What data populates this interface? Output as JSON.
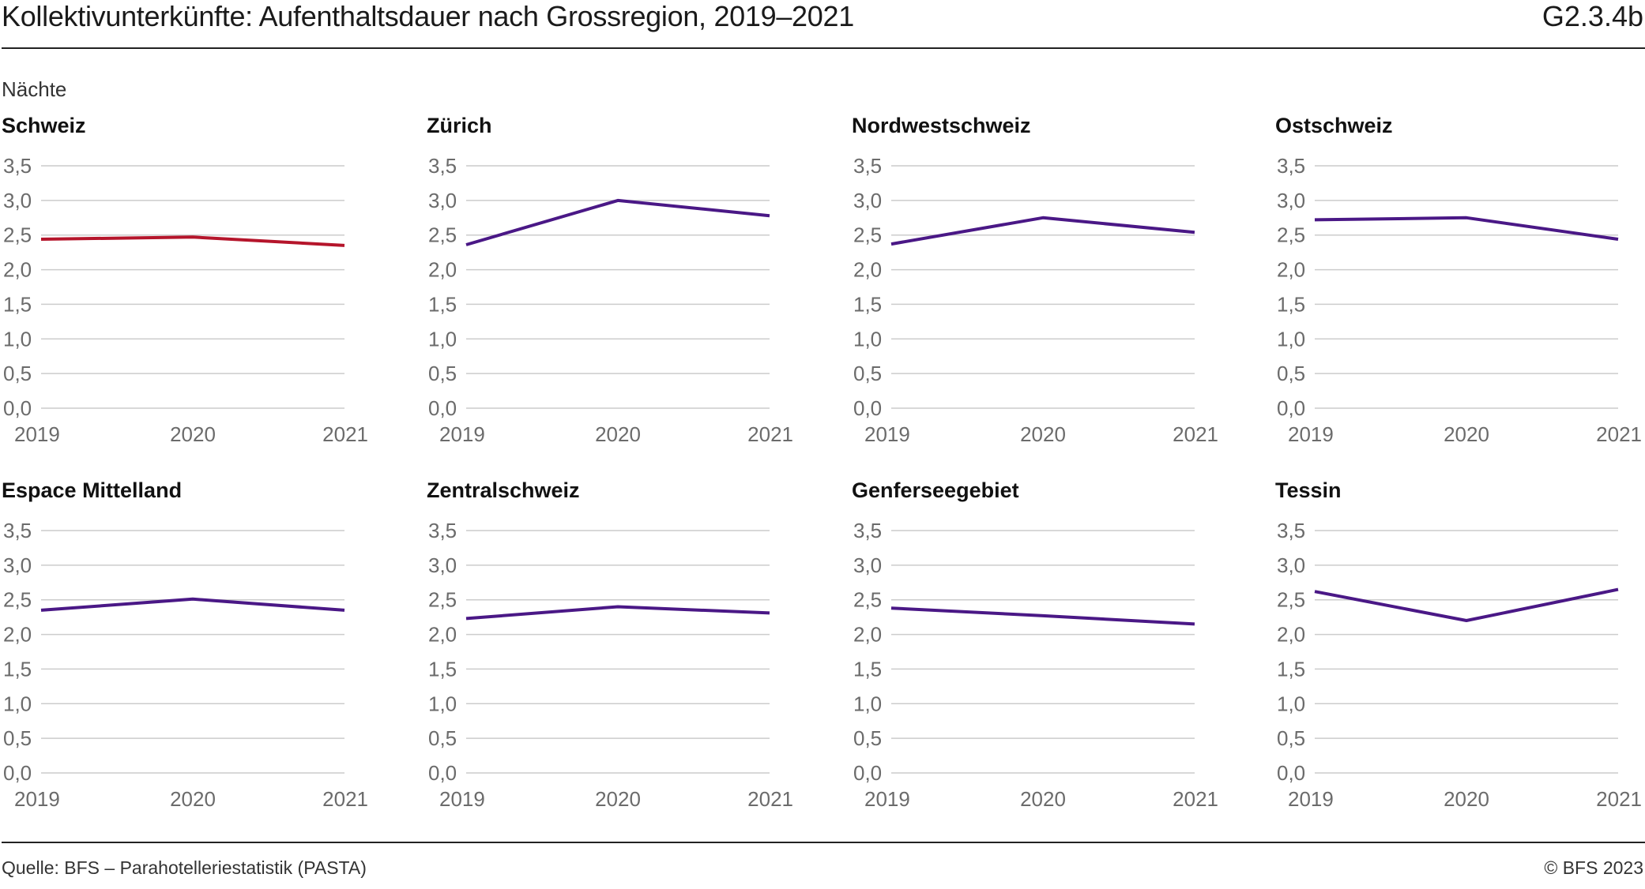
{
  "header": {
    "title": "Kollektivunterkünfte: Aufenthaltsdauer nach Grossregion, 2019–2021",
    "code": "G2.3.4b",
    "unit": "Nächte"
  },
  "footer": {
    "source": "Quelle: BFS – Parahotelleriestatistik (PASTA)",
    "copyright": "© BFS 2023"
  },
  "colors": {
    "highlight": "#b5152b",
    "series": "#4a1886",
    "grid": "#cccccc",
    "text": "#6b6b6b"
  },
  "chart_data": [
    {
      "type": "line",
      "title": "Schweiz",
      "x": [
        "2019",
        "2020",
        "2021"
      ],
      "values": [
        2.44,
        2.47,
        2.35
      ],
      "ylim": [
        0,
        3.5
      ],
      "yticks": [
        "0,0",
        "0,5",
        "1,0",
        "1,5",
        "2,0",
        "2,5",
        "3,0",
        "3,5"
      ],
      "color": "#b5152b",
      "grid": true
    },
    {
      "type": "line",
      "title": "Zürich",
      "x": [
        "2019",
        "2020",
        "2021"
      ],
      "values": [
        2.36,
        3.0,
        2.78
      ],
      "ylim": [
        0,
        3.5
      ],
      "yticks": [
        "0,0",
        "0,5",
        "1,0",
        "1,5",
        "2,0",
        "2,5",
        "3,0",
        "3,5"
      ],
      "color": "#4a1886",
      "grid": true
    },
    {
      "type": "line",
      "title": "Nordwestschweiz",
      "x": [
        "2019",
        "2020",
        "2021"
      ],
      "values": [
        2.37,
        2.75,
        2.54
      ],
      "ylim": [
        0,
        3.5
      ],
      "yticks": [
        "0,0",
        "0,5",
        "1,0",
        "1,5",
        "2,0",
        "2,5",
        "3,0",
        "3,5"
      ],
      "color": "#4a1886",
      "grid": true
    },
    {
      "type": "line",
      "title": "Ostschweiz",
      "x": [
        "2019",
        "2020",
        "2021"
      ],
      "values": [
        2.72,
        2.75,
        2.44
      ],
      "ylim": [
        0,
        3.5
      ],
      "yticks": [
        "0,0",
        "0,5",
        "1,0",
        "1,5",
        "2,0",
        "2,5",
        "3,0",
        "3,5"
      ],
      "color": "#4a1886",
      "grid": true
    },
    {
      "type": "line",
      "title": "Espace Mittelland",
      "x": [
        "2019",
        "2020",
        "2021"
      ],
      "values": [
        2.35,
        2.51,
        2.35
      ],
      "ylim": [
        0,
        3.5
      ],
      "yticks": [
        "0,0",
        "0,5",
        "1,0",
        "1,5",
        "2,0",
        "2,5",
        "3,0",
        "3,5"
      ],
      "color": "#4a1886",
      "grid": true
    },
    {
      "type": "line",
      "title": "Zentralschweiz",
      "x": [
        "2019",
        "2020",
        "2021"
      ],
      "values": [
        2.23,
        2.4,
        2.31
      ],
      "ylim": [
        0,
        3.5
      ],
      "yticks": [
        "0,0",
        "0,5",
        "1,0",
        "1,5",
        "2,0",
        "2,5",
        "3,0",
        "3,5"
      ],
      "color": "#4a1886",
      "grid": true
    },
    {
      "type": "line",
      "title": "Genferseegebiet",
      "x": [
        "2019",
        "2020",
        "2021"
      ],
      "values": [
        2.38,
        2.27,
        2.15
      ],
      "ylim": [
        0,
        3.5
      ],
      "yticks": [
        "0,0",
        "0,5",
        "1,0",
        "1,5",
        "2,0",
        "2,5",
        "3,0",
        "3,5"
      ],
      "color": "#4a1886",
      "grid": true
    },
    {
      "type": "line",
      "title": "Tessin",
      "x": [
        "2019",
        "2020",
        "2021"
      ],
      "values": [
        2.62,
        2.2,
        2.65
      ],
      "ylim": [
        0,
        3.5
      ],
      "yticks": [
        "0,0",
        "0,5",
        "1,0",
        "1,5",
        "2,0",
        "2,5",
        "3,0",
        "3,5"
      ],
      "color": "#4a1886",
      "grid": true
    }
  ]
}
